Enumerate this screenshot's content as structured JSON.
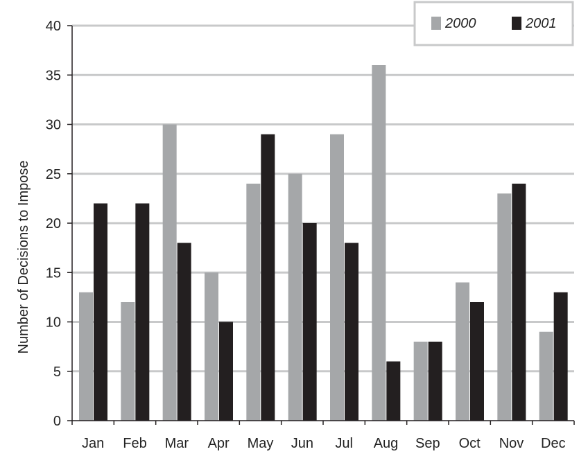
{
  "chart_data": {
    "type": "bar",
    "categories": [
      "Jan",
      "Feb",
      "Mar",
      "Apr",
      "May",
      "Jun",
      "Jul",
      "Aug",
      "Sep",
      "Oct",
      "Nov",
      "Dec"
    ],
    "series": [
      {
        "name": "2000",
        "color": "#a5a7a9",
        "values": [
          13,
          12,
          30,
          15,
          24,
          25,
          29,
          36,
          8,
          14,
          23,
          9
        ]
      },
      {
        "name": "2001",
        "color": "#231f20",
        "values": [
          22,
          22,
          18,
          10,
          29,
          20,
          18,
          6,
          8,
          12,
          24,
          13
        ]
      }
    ],
    "title": "",
    "xlabel": "",
    "ylabel": "Number of Decisions to Impose",
    "ylim": [
      0,
      40
    ],
    "yticks": [
      "0",
      "5",
      "10",
      "15",
      "20",
      "25",
      "30",
      "35",
      "40"
    ],
    "grid": true,
    "legend_position": "top-right"
  }
}
